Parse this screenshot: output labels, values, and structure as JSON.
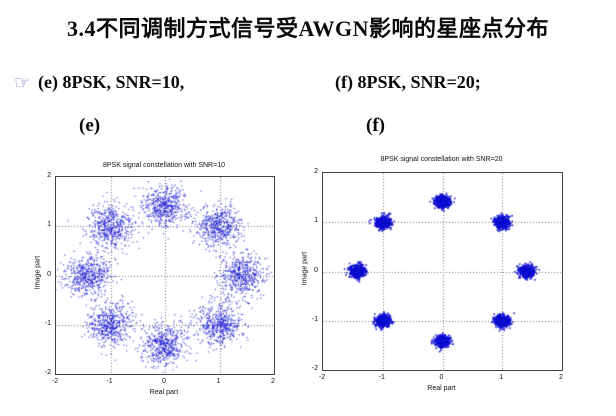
{
  "slide": {
    "title": "3.4不同调制方式信号受AWGN影响的星座点分布",
    "bullet": {
      "icon_glyph": "☞",
      "icon_color": "#7b7bc0",
      "label_left": "(e) 8PSK, SNR=10,",
      "label_right": "(f) 8PSK, SNR=20;"
    },
    "subfigure_labels": {
      "left": "(e)",
      "right": "(f)"
    },
    "colors": {
      "text": "#0a0a0a",
      "marker": "#0d0dd0",
      "grid": "#777777"
    }
  },
  "chart_data": [
    {
      "type": "scatter",
      "title": "8PSK signal constellation with SNR=10",
      "xlabel": "Real part",
      "ylabel": "Image part",
      "xlim": [
        -2,
        2
      ],
      "ylim": [
        -2,
        2
      ],
      "xticks": [
        -2,
        -1,
        0,
        1,
        2
      ],
      "yticks": [
        2,
        1,
        0,
        -1,
        -2
      ],
      "grid": true,
      "legend": null,
      "modulation": "8PSK",
      "snr_db": 10,
      "constellation_radius": 1.414,
      "cluster_centers": [
        [
          1.414,
          0
        ],
        [
          1,
          1
        ],
        [
          0,
          1.414
        ],
        [
          -1,
          1
        ],
        [
          -1.414,
          0
        ],
        [
          -1,
          -1
        ],
        [
          0,
          -1.414
        ],
        [
          1,
          -1
        ]
      ],
      "noise_std": 0.21,
      "points_per_cluster": 520,
      "marker_color": "#0d0dd0"
    },
    {
      "type": "scatter",
      "title": "8PSK signal constellation with SNR=20",
      "xlabel": "Real part",
      "ylabel": "Image part",
      "xlim": [
        -2,
        2
      ],
      "ylim": [
        -2,
        2
      ],
      "xticks": [
        -2,
        -1,
        0,
        1,
        2
      ],
      "yticks": [
        2,
        1,
        0,
        -1,
        -2
      ],
      "grid": true,
      "legend": null,
      "modulation": "8PSK",
      "snr_db": 20,
      "constellation_radius": 1.414,
      "cluster_centers": [
        [
          1.414,
          0
        ],
        [
          1,
          1
        ],
        [
          0,
          1.414
        ],
        [
          -1,
          1
        ],
        [
          -1.414,
          0
        ],
        [
          -1,
          -1
        ],
        [
          0,
          -1.414
        ],
        [
          1,
          -1
        ]
      ],
      "noise_std": 0.06,
      "points_per_cluster": 600,
      "marker_color": "#0d0dd0"
    }
  ]
}
